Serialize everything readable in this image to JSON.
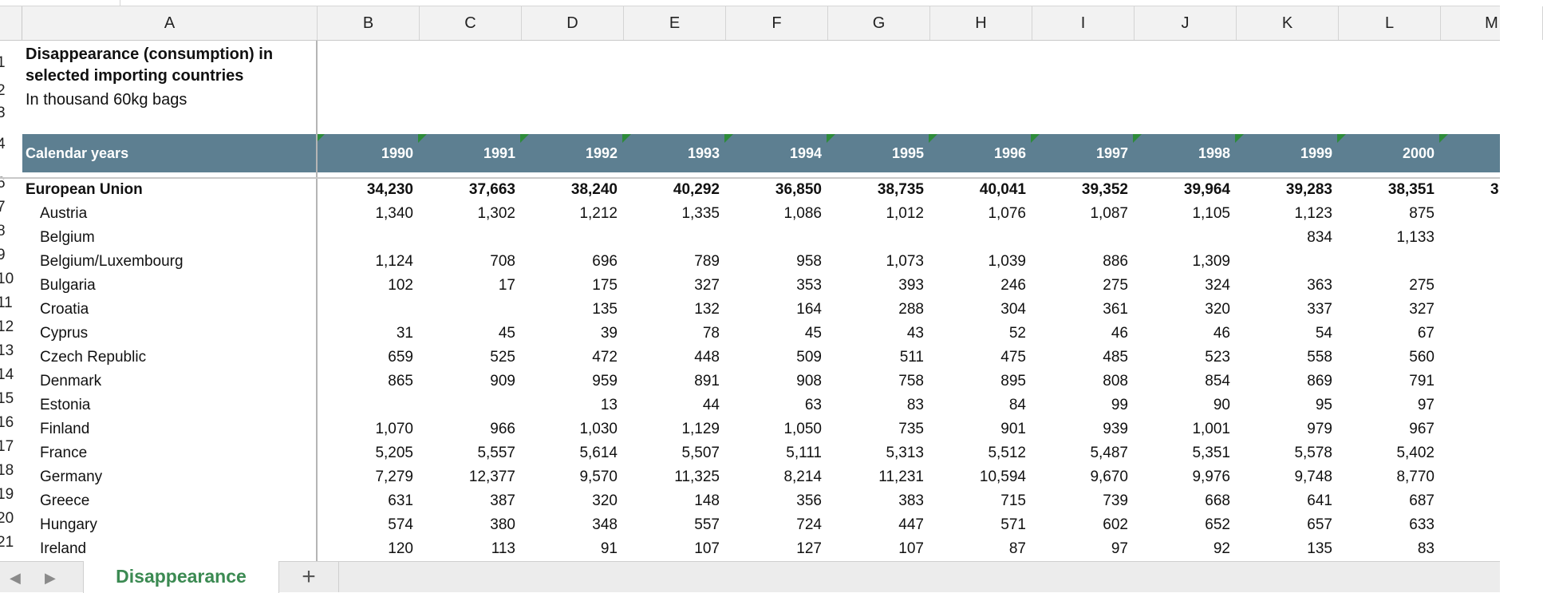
{
  "columns": [
    "A",
    "B",
    "C",
    "D",
    "E",
    "F",
    "G",
    "H",
    "I",
    "J",
    "K",
    "L",
    "M"
  ],
  "title": "Disappearance (consumption) in selected importing countries",
  "subtitle": "In thousand 60kg bags",
  "header": {
    "label": "Calendar years",
    "years": [
      "1990",
      "1991",
      "1992",
      "1993",
      "1994",
      "1995",
      "1996",
      "1997",
      "1998",
      "1999",
      "2000"
    ]
  },
  "row_numbers": [
    "1",
    "2",
    "3",
    "4",
    "6",
    "7",
    "8",
    "9",
    "10",
    "11",
    "12",
    "13",
    "14",
    "15",
    "16",
    "17",
    "18",
    "19",
    "20",
    "21"
  ],
  "rows": [
    {
      "num": "6",
      "name": "European Union",
      "bold": true,
      "values": [
        "34,230",
        "37,663",
        "38,240",
        "40,292",
        "36,850",
        "38,735",
        "40,041",
        "39,352",
        "39,964",
        "39,283",
        "38,351"
      ],
      "overflow": "3"
    },
    {
      "num": "7",
      "name": "Austria",
      "values": [
        "1,340",
        "1,302",
        "1,212",
        "1,335",
        "1,086",
        "1,012",
        "1,076",
        "1,087",
        "1,105",
        "1,123",
        "875"
      ]
    },
    {
      "num": "8",
      "name": "Belgium",
      "values": [
        "",
        "",
        "",
        "",
        "",
        "",
        "",
        "",
        "",
        "834",
        "1,133"
      ]
    },
    {
      "num": "9",
      "name": "Belgium/Luxembourg",
      "values": [
        "1,124",
        "708",
        "696",
        "789",
        "958",
        "1,073",
        "1,039",
        "886",
        "1,309",
        "",
        ""
      ]
    },
    {
      "num": "10",
      "name": "Bulgaria",
      "values": [
        "102",
        "17",
        "175",
        "327",
        "353",
        "393",
        "246",
        "275",
        "324",
        "363",
        "275"
      ]
    },
    {
      "num": "11",
      "name": "Croatia",
      "values": [
        "",
        "",
        "135",
        "132",
        "164",
        "288",
        "304",
        "361",
        "320",
        "337",
        "327"
      ]
    },
    {
      "num": "12",
      "name": "Cyprus",
      "values": [
        "31",
        "45",
        "39",
        "78",
        "45",
        "43",
        "52",
        "46",
        "46",
        "54",
        "67"
      ]
    },
    {
      "num": "13",
      "name": "Czech Republic",
      "values": [
        "659",
        "525",
        "472",
        "448",
        "509",
        "511",
        "475",
        "485",
        "523",
        "558",
        "560"
      ]
    },
    {
      "num": "14",
      "name": "Denmark",
      "values": [
        "865",
        "909",
        "959",
        "891",
        "908",
        "758",
        "895",
        "808",
        "854",
        "869",
        "791"
      ]
    },
    {
      "num": "15",
      "name": "Estonia",
      "values": [
        "",
        "",
        "13",
        "44",
        "63",
        "83",
        "84",
        "99",
        "90",
        "95",
        "97"
      ]
    },
    {
      "num": "16",
      "name": "Finland",
      "values": [
        "1,070",
        "966",
        "1,030",
        "1,129",
        "1,050",
        "735",
        "901",
        "939",
        "1,001",
        "979",
        "967"
      ]
    },
    {
      "num": "17",
      "name": "France",
      "values": [
        "5,205",
        "5,557",
        "5,614",
        "5,507",
        "5,111",
        "5,313",
        "5,512",
        "5,487",
        "5,351",
        "5,578",
        "5,402"
      ]
    },
    {
      "num": "18",
      "name": "Germany",
      "values": [
        "7,279",
        "12,377",
        "9,570",
        "11,325",
        "8,214",
        "11,231",
        "10,594",
        "9,670",
        "9,976",
        "9,748",
        "8,770"
      ]
    },
    {
      "num": "19",
      "name": "Greece",
      "values": [
        "631",
        "387",
        "320",
        "148",
        "356",
        "383",
        "715",
        "739",
        "668",
        "641",
        "687"
      ]
    },
    {
      "num": "20",
      "name": "Hungary",
      "values": [
        "574",
        "380",
        "348",
        "557",
        "724",
        "447",
        "571",
        "602",
        "652",
        "657",
        "633"
      ]
    },
    {
      "num": "21",
      "name": "Ireland",
      "values": [
        "120",
        "113",
        "91",
        "107",
        "127",
        "107",
        "87",
        "97",
        "92",
        "135",
        "83"
      ]
    }
  ],
  "tabs": {
    "active": "Disappearance",
    "add_label": "+",
    "prev_label": "◀",
    "next_label": "▶"
  }
}
